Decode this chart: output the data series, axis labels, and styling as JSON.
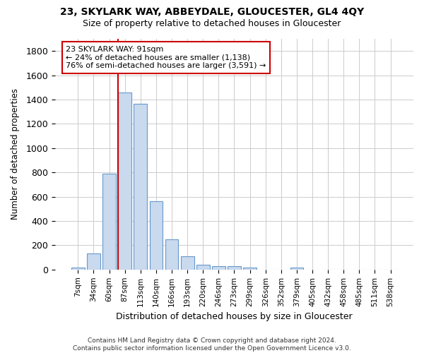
{
  "title": "23, SKYLARK WAY, ABBEYDALE, GLOUCESTER, GL4 4QY",
  "subtitle": "Size of property relative to detached houses in Gloucester",
  "xlabel": "Distribution of detached houses by size in Gloucester",
  "ylabel": "Number of detached properties",
  "bar_color": "#c9d9ee",
  "bar_edgecolor": "#6699cc",
  "background_color": "#ffffff",
  "grid_color": "#cccccc",
  "annotation_line_color": "#cc0000",
  "annotation_box_edgecolor": "#cc0000",
  "annotation_text_line1": "23 SKYLARK WAY: 91sqm",
  "annotation_text_line2": "← 24% of detached houses are smaller (1,138)",
  "annotation_text_line3": "76% of semi-detached houses are larger (3,591) →",
  "categories": [
    "7sqm",
    "34sqm",
    "60sqm",
    "87sqm",
    "113sqm",
    "140sqm",
    "166sqm",
    "193sqm",
    "220sqm",
    "246sqm",
    "273sqm",
    "299sqm",
    "326sqm",
    "352sqm",
    "379sqm",
    "405sqm",
    "432sqm",
    "458sqm",
    "485sqm",
    "511sqm",
    "538sqm"
  ],
  "values": [
    15,
    130,
    790,
    1460,
    1365,
    565,
    250,
    110,
    37,
    30,
    30,
    18,
    0,
    0,
    18,
    0,
    0,
    0,
    0,
    0,
    0
  ],
  "ylim": [
    0,
    1900
  ],
  "yticks": [
    0,
    200,
    400,
    600,
    800,
    1000,
    1200,
    1400,
    1600,
    1800
  ],
  "red_line_index": 3,
  "footer_line1": "Contains HM Land Registry data © Crown copyright and database right 2024.",
  "footer_line2": "Contains public sector information licensed under the Open Government Licence v3.0."
}
